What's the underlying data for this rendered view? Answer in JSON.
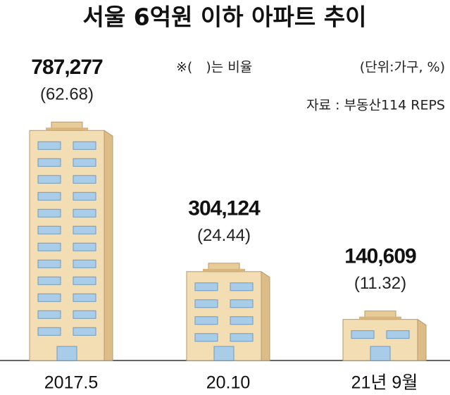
{
  "chart_data": {
    "type": "bar",
    "title": "서울 6억원 이하 아파트 추이",
    "notes": [
      "※(　)는 비율",
      "(단위:가구, %)",
      "자료 : 부동산114 REPS"
    ],
    "categories": [
      "2017.5",
      "20.10",
      "21년 9월"
    ],
    "values": [
      787277,
      304124,
      140609
    ],
    "value_labels": [
      "787,277",
      "304,124",
      "140,609"
    ],
    "ratios": [
      62.68,
      24.44,
      11.32
    ],
    "ratio_labels": [
      "(62.68)",
      "(24.44)",
      "(11.32)"
    ],
    "color": "#f3ddb3",
    "ylim": [
      0,
      800000
    ]
  }
}
